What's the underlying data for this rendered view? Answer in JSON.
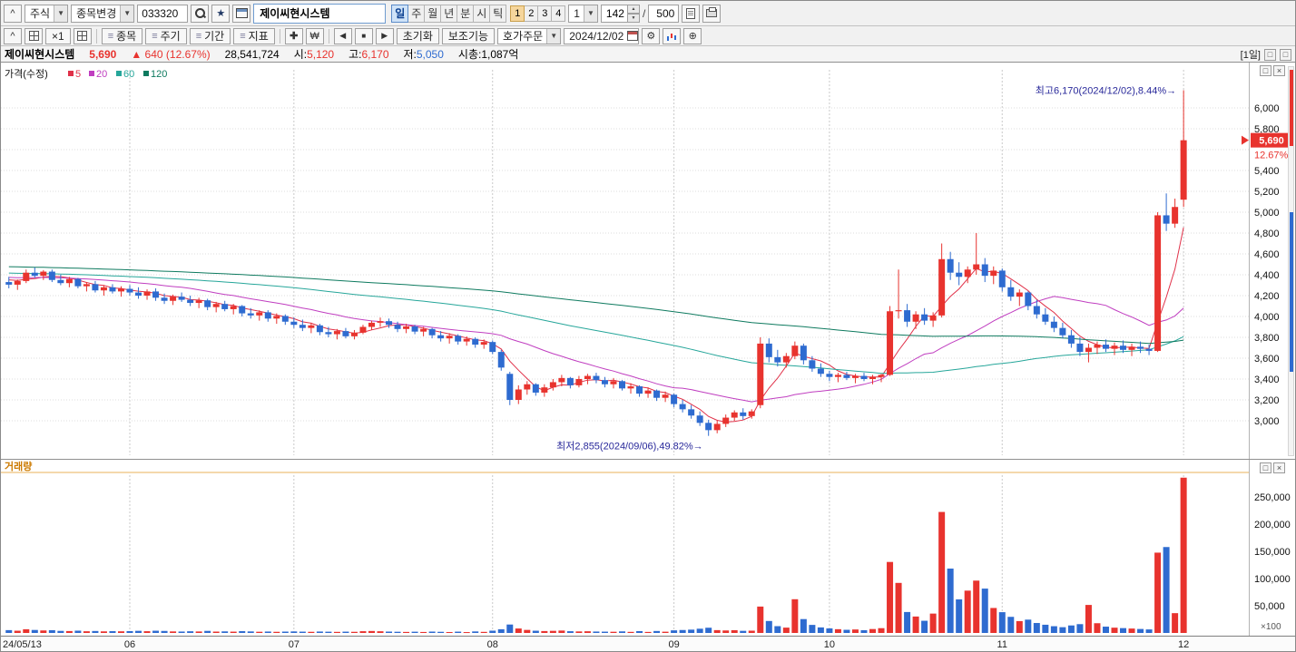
{
  "icons": {
    "caret": "^",
    "dropdown": "▼",
    "star": "★",
    "spin_up": "▲",
    "spin_down": "▼",
    "prev": "◀",
    "stop": "■",
    "next": "▶",
    "won": "₩",
    "move": "✚",
    "gear": "⚙",
    "zoom": "⊕",
    "close": "×",
    "restore": "□",
    "menu": "≡"
  },
  "toolbar1": {
    "collapse": "^",
    "asset_type": "주식",
    "stock_change": "종목변경",
    "code": "033320",
    "stock_name": "제이씨현시스템",
    "periods": [
      "일",
      "주",
      "월",
      "년",
      "분",
      "시",
      "틱"
    ],
    "nums": [
      "1",
      "2",
      "3",
      "4"
    ],
    "num_combo": "1",
    "count": "142",
    "count_sep": "/",
    "count_max": "500"
  },
  "toolbar2": {
    "x1": "×1",
    "menu_buttons": [
      "종목",
      "주기",
      "기간",
      "지표"
    ],
    "reset": "초기화",
    "aux": "보조기능",
    "order": "호가주문",
    "date": "2024/12/02"
  },
  "info_bar": {
    "name": "제이씨현시스템",
    "price": "5,690",
    "change_arrow": "▲",
    "change_value": "640",
    "change_pct": "(12.67%)",
    "volume": "28,541,724",
    "open_label": "시:",
    "open_value": "5,120",
    "high_label": "고:",
    "high_value": "6,170",
    "low_label": "저:",
    "low_value": "5,050",
    "cap_label": "시총:",
    "cap_value": "1,087억",
    "range_tag": "[1일]"
  },
  "price_pane": {
    "legend_title": "가격(수정)",
    "ma_labels": [
      "5",
      "20",
      "60",
      "120"
    ],
    "badge": "5,690",
    "badge_pct": "12.67%",
    "y_ticks": [
      "6,000",
      "5,800",
      "5,600",
      "5,400",
      "5,200",
      "5,000",
      "4,800",
      "4,600",
      "4,400",
      "4,200",
      "4,000",
      "3,800",
      "3,600",
      "3,400",
      "3,200",
      "3,000"
    ]
  },
  "volume_pane": {
    "legend": "거래량",
    "y_ticks": [
      "250,000",
      "200,000",
      "150,000",
      "100,000",
      "50,000"
    ],
    "unit": "×100"
  },
  "x_axis": {
    "labels": [
      {
        "label": "24/05/13",
        "index": 0
      },
      {
        "label": "06",
        "index": 14
      },
      {
        "label": "07",
        "index": 33
      },
      {
        "label": "08",
        "index": 56
      },
      {
        "label": "09",
        "index": 77
      },
      {
        "label": "10",
        "index": 95
      },
      {
        "label": "11",
        "index": 115
      },
      {
        "label": "12",
        "index": 136
      }
    ]
  },
  "colors": {
    "up": "#e8332e",
    "down": "#2e6bd0",
    "badge_bg": "#e8332e",
    "annotation": "#28289a",
    "grid": "#dedede",
    "month_grid": "#c9c9c9",
    "volume_label": "#cc7a00",
    "volume_line": "#e8b25a",
    "axis_text": "#111111",
    "ma5": "#e03048",
    "ma20": "#c03ec0",
    "ma60": "#26a69a",
    "ma120": "#0e7a5f"
  },
  "chart_data": {
    "type": "candlestick+volume",
    "title": "제이씨현시스템 (033320) 일봉 차트",
    "price_grid": [
      6000,
      5800,
      5600,
      5400,
      5200,
      5000,
      4800,
      4600,
      4400,
      4200,
      4000,
      3800,
      3600,
      3400,
      3200,
      3000
    ],
    "volume_grid": [
      250000,
      200000,
      150000,
      100000,
      50000
    ],
    "volume_unit_multiplier": 100,
    "ma_windows": [
      5,
      20,
      60,
      120
    ],
    "ma_prehistory": {
      "days": 120,
      "from": 4600,
      "to": 4360
    },
    "last": {
      "open": 5120,
      "high": 6170,
      "low": 5050,
      "close": 5690,
      "change": 640,
      "change_pct": 12.67,
      "prev_close": 5050,
      "volume_shares": 28541724
    },
    "annotations": {
      "high": {
        "text": "최고6,170(2024/12/02),8.44%→",
        "price": 6170,
        "index": 136
      },
      "low": {
        "text": "최저2,855(2024/09/06),49.82%→",
        "price": 2855,
        "index": 81
      }
    },
    "candles": [
      [
        "05/13",
        4330,
        4380,
        4270,
        4305,
        5200
      ],
      [
        "05/14",
        4305,
        4355,
        4255,
        4340,
        4100
      ],
      [
        "05/16",
        4340,
        4450,
        4320,
        4420,
        6800
      ],
      [
        "05/17",
        4420,
        4470,
        4370,
        4390,
        5500
      ],
      [
        "05/20",
        4390,
        4445,
        4350,
        4430,
        4600
      ],
      [
        "05/21",
        4430,
        4450,
        4330,
        4350,
        5100
      ],
      [
        "05/22",
        4350,
        4400,
        4300,
        4320,
        3800
      ],
      [
        "05/23",
        4320,
        4380,
        4280,
        4360,
        3500
      ],
      [
        "05/24",
        4360,
        4370,
        4270,
        4290,
        4200
      ],
      [
        "05/27",
        4290,
        4330,
        4240,
        4310,
        3100
      ],
      [
        "05/28",
        4310,
        4340,
        4230,
        4250,
        3600
      ],
      [
        "05/29",
        4250,
        4300,
        4200,
        4280,
        2900
      ],
      [
        "05/30",
        4280,
        4310,
        4220,
        4240,
        3300
      ],
      [
        "05/31",
        4240,
        4290,
        4190,
        4265,
        3000
      ],
      [
        "06/03",
        4265,
        4300,
        4200,
        4230,
        3400
      ],
      [
        "06/04",
        4230,
        4280,
        4170,
        4200,
        3900
      ],
      [
        "06/05",
        4200,
        4260,
        4160,
        4240,
        3200
      ],
      [
        "06/07",
        4240,
        4270,
        4150,
        4180,
        4100
      ],
      [
        "06/10",
        4180,
        4220,
        4120,
        4150,
        3700
      ],
      [
        "06/11",
        4150,
        4210,
        4110,
        4190,
        2800
      ],
      [
        "06/12",
        4190,
        4230,
        4140,
        4160,
        2600
      ],
      [
        "06/13",
        4160,
        4200,
        4100,
        4130,
        3100
      ],
      [
        "06/14",
        4130,
        4180,
        4080,
        4155,
        2700
      ],
      [
        "06/17",
        4155,
        4170,
        4060,
        4090,
        3800
      ],
      [
        "06/18",
        4090,
        4140,
        4040,
        4120,
        2500
      ],
      [
        "06/19",
        4120,
        4150,
        4050,
        4070,
        2900
      ],
      [
        "06/20",
        4070,
        4120,
        4020,
        4100,
        2400
      ],
      [
        "06/21",
        4100,
        4110,
        4000,
        4030,
        3300
      ],
      [
        "06/24",
        4030,
        4080,
        3980,
        4010,
        2800
      ],
      [
        "06/25",
        4010,
        4060,
        3960,
        4040,
        2200
      ],
      [
        "06/26",
        4040,
        4060,
        3950,
        3980,
        2600
      ],
      [
        "06/27",
        3980,
        4030,
        3930,
        4005,
        2100
      ],
      [
        "06/28",
        4005,
        4020,
        3920,
        3950,
        2500
      ],
      [
        "07/01",
        3950,
        3990,
        3890,
        3920,
        2800
      ],
      [
        "07/02",
        3920,
        3970,
        3860,
        3890,
        2400
      ],
      [
        "07/03",
        3890,
        3940,
        3840,
        3915,
        2100
      ],
      [
        "07/04",
        3915,
        3930,
        3820,
        3850,
        2600
      ],
      [
        "07/05",
        3850,
        3900,
        3800,
        3830,
        2300
      ],
      [
        "07/08",
        3830,
        3880,
        3780,
        3860,
        2000
      ],
      [
        "07/09",
        3860,
        3890,
        3790,
        3810,
        2400
      ],
      [
        "07/10",
        3810,
        3870,
        3780,
        3845,
        2100
      ],
      [
        "07/11",
        3845,
        3920,
        3830,
        3900,
        3200
      ],
      [
        "07/12",
        3900,
        3960,
        3870,
        3940,
        3600
      ],
      [
        "07/15",
        3940,
        3990,
        3900,
        3955,
        3100
      ],
      [
        "07/16",
        3955,
        3980,
        3890,
        3920,
        2500
      ],
      [
        "07/17",
        3920,
        3950,
        3850,
        3880,
        2200
      ],
      [
        "07/18",
        3880,
        3930,
        3840,
        3905,
        1900
      ],
      [
        "07/19",
        3905,
        3920,
        3830,
        3855,
        2300
      ],
      [
        "07/22",
        3855,
        3900,
        3810,
        3880,
        1800
      ],
      [
        "07/23",
        3880,
        3890,
        3790,
        3820,
        2500
      ],
      [
        "07/24",
        3820,
        3860,
        3760,
        3790,
        2100
      ],
      [
        "07/25",
        3790,
        3840,
        3740,
        3815,
        1700
      ],
      [
        "07/26",
        3815,
        3830,
        3730,
        3760,
        2400
      ],
      [
        "07/29",
        3760,
        3810,
        3720,
        3785,
        1600
      ],
      [
        "07/30",
        3785,
        3800,
        3700,
        3730,
        2800
      ],
      [
        "07/31",
        3730,
        3780,
        3690,
        3755,
        2000
      ],
      [
        "08/01",
        3755,
        3770,
        3640,
        3660,
        4200
      ],
      [
        "08/02",
        3660,
        3680,
        3480,
        3510,
        6800
      ],
      [
        "08/05",
        3450,
        3470,
        3150,
        3200,
        15500
      ],
      [
        "08/06",
        3200,
        3340,
        3160,
        3300,
        8200
      ],
      [
        "08/07",
        3300,
        3380,
        3250,
        3350,
        5600
      ],
      [
        "08/08",
        3350,
        3360,
        3240,
        3270,
        4100
      ],
      [
        "08/09",
        3270,
        3350,
        3230,
        3320,
        3500
      ],
      [
        "08/12",
        3320,
        3400,
        3290,
        3370,
        3900
      ],
      [
        "08/13",
        3370,
        3440,
        3330,
        3410,
        4400
      ],
      [
        "08/14",
        3410,
        3420,
        3310,
        3340,
        3200
      ],
      [
        "08/16",
        3340,
        3430,
        3320,
        3400,
        2800
      ],
      [
        "08/19",
        3400,
        3450,
        3350,
        3430,
        3100
      ],
      [
        "08/20",
        3430,
        3460,
        3360,
        3390,
        2600
      ],
      [
        "08/21",
        3390,
        3420,
        3320,
        3350,
        2400
      ],
      [
        "08/22",
        3350,
        3410,
        3310,
        3380,
        2200
      ],
      [
        "08/23",
        3380,
        3390,
        3290,
        3310,
        2900
      ],
      [
        "08/26",
        3310,
        3360,
        3260,
        3330,
        2000
      ],
      [
        "08/27",
        3330,
        3340,
        3230,
        3260,
        3400
      ],
      [
        "08/28",
        3260,
        3320,
        3220,
        3290,
        1900
      ],
      [
        "08/29",
        3290,
        3300,
        3190,
        3220,
        3600
      ],
      [
        "08/30",
        3220,
        3280,
        3180,
        3250,
        2300
      ],
      [
        "09/02",
        3250,
        3260,
        3130,
        3160,
        4800
      ],
      [
        "09/03",
        3160,
        3200,
        3080,
        3110,
        5400
      ],
      [
        "09/04",
        3110,
        3150,
        3020,
        3050,
        6100
      ],
      [
        "09/05",
        3050,
        3090,
        2950,
        2980,
        7800
      ],
      [
        "09/06",
        2980,
        3010,
        2855,
        2910,
        9600
      ],
      [
        "09/09",
        2910,
        3000,
        2880,
        2970,
        5200
      ],
      [
        "09/10",
        2970,
        3060,
        2940,
        3030,
        4600
      ],
      [
        "09/11",
        3030,
        3100,
        3000,
        3080,
        5100
      ],
      [
        "09/12",
        3080,
        3120,
        3010,
        3045,
        3900
      ],
      [
        "09/13",
        3045,
        3110,
        3020,
        3090,
        4200
      ],
      [
        "09/19",
        3150,
        3800,
        3120,
        3740,
        48500
      ],
      [
        "09/20",
        3740,
        3790,
        3560,
        3610,
        22000
      ],
      [
        "09/23",
        3610,
        3680,
        3520,
        3560,
        12500
      ],
      [
        "09/24",
        3560,
        3650,
        3510,
        3620,
        9800
      ],
      [
        "09/25",
        3620,
        3760,
        3590,
        3720,
        62000
      ],
      [
        "09/26",
        3720,
        3740,
        3540,
        3580,
        25500
      ],
      [
        "09/27",
        3580,
        3620,
        3470,
        3500,
        14800
      ],
      [
        "09/30",
        3500,
        3550,
        3420,
        3450,
        10200
      ],
      [
        "10/02",
        3450,
        3480,
        3380,
        3420,
        8400
      ],
      [
        "10/04",
        3420,
        3460,
        3370,
        3440,
        6900
      ],
      [
        "10/07",
        3440,
        3470,
        3390,
        3410,
        5800
      ],
      [
        "10/08",
        3410,
        3450,
        3360,
        3430,
        6400
      ],
      [
        "10/10",
        3430,
        3460,
        3380,
        3400,
        5100
      ],
      [
        "10/11",
        3400,
        3440,
        3350,
        3420,
        7200
      ],
      [
        "10/14",
        3420,
        3450,
        3370,
        3440,
        8800
      ],
      [
        "10/15",
        3440,
        4100,
        3430,
        4050,
        130500
      ],
      [
        "10/16",
        4050,
        4450,
        3980,
        4060,
        92000
      ],
      [
        "10/17",
        4060,
        4120,
        3900,
        3950,
        38500
      ],
      [
        "10/18",
        3950,
        4050,
        3880,
        4020,
        30200
      ],
      [
        "10/21",
        4020,
        4080,
        3920,
        3960,
        22400
      ],
      [
        "10/22",
        3960,
        4040,
        3900,
        4010,
        35600
      ],
      [
        "10/23",
        4010,
        4700,
        3990,
        4550,
        222400
      ],
      [
        "10/24",
        4550,
        4620,
        4350,
        4420,
        118300
      ],
      [
        "10/25",
        4420,
        4520,
        4300,
        4380,
        61700
      ],
      [
        "10/28",
        4380,
        4480,
        4320,
        4450,
        77800
      ],
      [
        "10/29",
        4450,
        4800,
        4400,
        4500,
        96200
      ],
      [
        "10/30",
        4500,
        4560,
        4330,
        4390,
        81500
      ],
      [
        "10/31",
        4390,
        4480,
        4310,
        4440,
        45900
      ],
      [
        "11/01",
        4440,
        4460,
        4240,
        4280,
        38200
      ],
      [
        "11/04",
        4280,
        4350,
        4150,
        4190,
        29600
      ],
      [
        "11/05",
        4190,
        4260,
        4100,
        4230,
        21800
      ],
      [
        "11/06",
        4230,
        4240,
        4060,
        4100,
        24500
      ],
      [
        "11/07",
        4100,
        4160,
        3980,
        4020,
        18300
      ],
      [
        "11/08",
        4020,
        4080,
        3920,
        3950,
        15100
      ],
      [
        "11/11",
        3950,
        4000,
        3850,
        3890,
        12400
      ],
      [
        "11/12",
        3890,
        3940,
        3790,
        3820,
        10600
      ],
      [
        "11/13",
        3820,
        3870,
        3700,
        3740,
        13800
      ],
      [
        "11/14",
        3740,
        3800,
        3620,
        3660,
        16200
      ],
      [
        "11/15",
        3660,
        3740,
        3560,
        3700,
        51500
      ],
      [
        "11/18",
        3700,
        3760,
        3640,
        3730,
        17900
      ],
      [
        "11/19",
        3730,
        3780,
        3660,
        3690,
        11600
      ],
      [
        "11/20",
        3690,
        3750,
        3630,
        3720,
        9700
      ],
      [
        "11/21",
        3720,
        3770,
        3650,
        3680,
        8900
      ],
      [
        "11/22",
        3680,
        3740,
        3620,
        3710,
        8100
      ],
      [
        "11/25",
        3710,
        3760,
        3650,
        3690,
        7300
      ],
      [
        "11/26",
        3690,
        3730,
        3630,
        3670,
        6500
      ],
      [
        "11/27",
        3670,
        5000,
        3660,
        4970,
        147600
      ],
      [
        "11/28",
        4970,
        5180,
        4820,
        4890,
        157900
      ],
      [
        "11/29",
        4890,
        5130,
        4850,
        5050,
        36400
      ],
      [
        "12/02",
        5120,
        6170,
        5050,
        5690,
        285417
      ]
    ]
  }
}
